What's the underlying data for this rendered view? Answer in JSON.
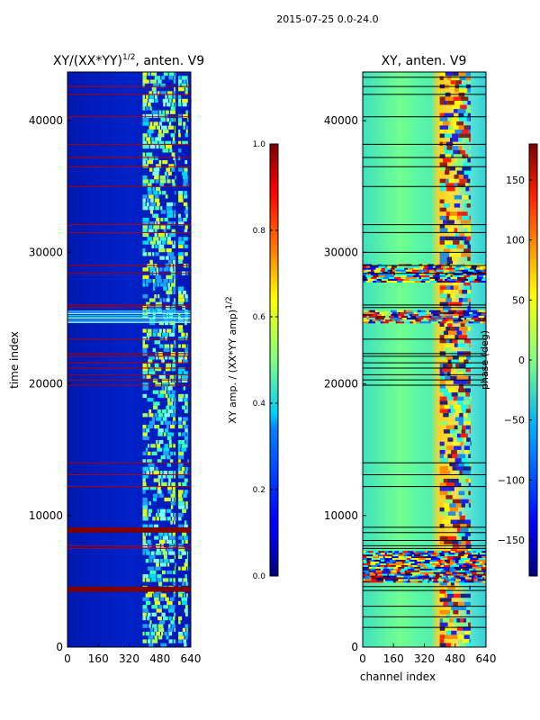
{
  "figure": {
    "suptitle": "2015-07-25 0.0-24.0"
  },
  "chart_data": [
    {
      "type": "heatmap",
      "title_main": "XY/(XX*YY)",
      "title_sup": "1/2",
      "title_tail": ", anten. V9",
      "xlabel": "",
      "ylabel": "time index",
      "xlim": [
        0,
        640
      ],
      "ylim": [
        0,
        43700
      ],
      "xticks": [
        0,
        160,
        320,
        480,
        640
      ],
      "yticks": [
        0,
        10000,
        20000,
        30000,
        40000
      ],
      "colormap": "jet",
      "band_channels": [
        [
          390,
          560
        ],
        [
          575,
          625
        ]
      ],
      "saturated_rows": [
        [
          4200,
          4600
        ],
        [
          8700,
          9100
        ]
      ],
      "coherent_rows": [
        [
          24600,
          25600
        ]
      ],
      "flag_lines": [
        7500,
        7700,
        12200,
        13100,
        14000,
        19900,
        20300,
        20700,
        21200,
        21600,
        22100,
        22300,
        23400,
        25800,
        26000,
        28400,
        29000,
        31500,
        32100,
        35000,
        36500,
        37200,
        38200,
        40300,
        42000,
        42600
      ],
      "colorbar": {
        "label_main": "XY amp. / (XX*YY amp)",
        "label_sup": "1/2",
        "min": 0.0,
        "max": 1.0,
        "ticks": [
          "0.0",
          "0.2",
          "0.4",
          "0.6",
          "0.8",
          "1.0"
        ]
      }
    },
    {
      "type": "heatmap",
      "title": "XY, anten. V9",
      "xlabel": "channel index",
      "ylabel": "",
      "xlim": [
        0,
        640
      ],
      "ylim": [
        0,
        43700
      ],
      "xticks": [
        0,
        160,
        320,
        480,
        640
      ],
      "yticks": [
        0,
        10000,
        20000,
        30000,
        40000
      ],
      "colormap": "jet",
      "phase_band_channels": [
        [
          400,
          560
        ]
      ],
      "structured_rows": [
        [
          4900,
          7300
        ],
        [
          27700,
          29100
        ],
        [
          24600,
          25600
        ]
      ],
      "flag_lines": [
        1500,
        2300,
        3100,
        4300,
        4600,
        7500,
        7700,
        8100,
        8700,
        9100,
        12200,
        13100,
        14000,
        19900,
        20300,
        20700,
        21200,
        21600,
        22100,
        22300,
        23400,
        25800,
        26000,
        28400,
        29000,
        30000,
        31500,
        32100,
        35000,
        36500,
        37200,
        38200,
        40300,
        42000,
        42600,
        43300
      ],
      "colorbar": {
        "label": "phase (deg)",
        "min": -180,
        "max": 180,
        "ticks": [
          "−150",
          "−100",
          "−50",
          "0",
          "50",
          "100",
          "150"
        ],
        "tick_values": [
          -150,
          -100,
          -50,
          0,
          50,
          100,
          150
        ]
      }
    }
  ]
}
